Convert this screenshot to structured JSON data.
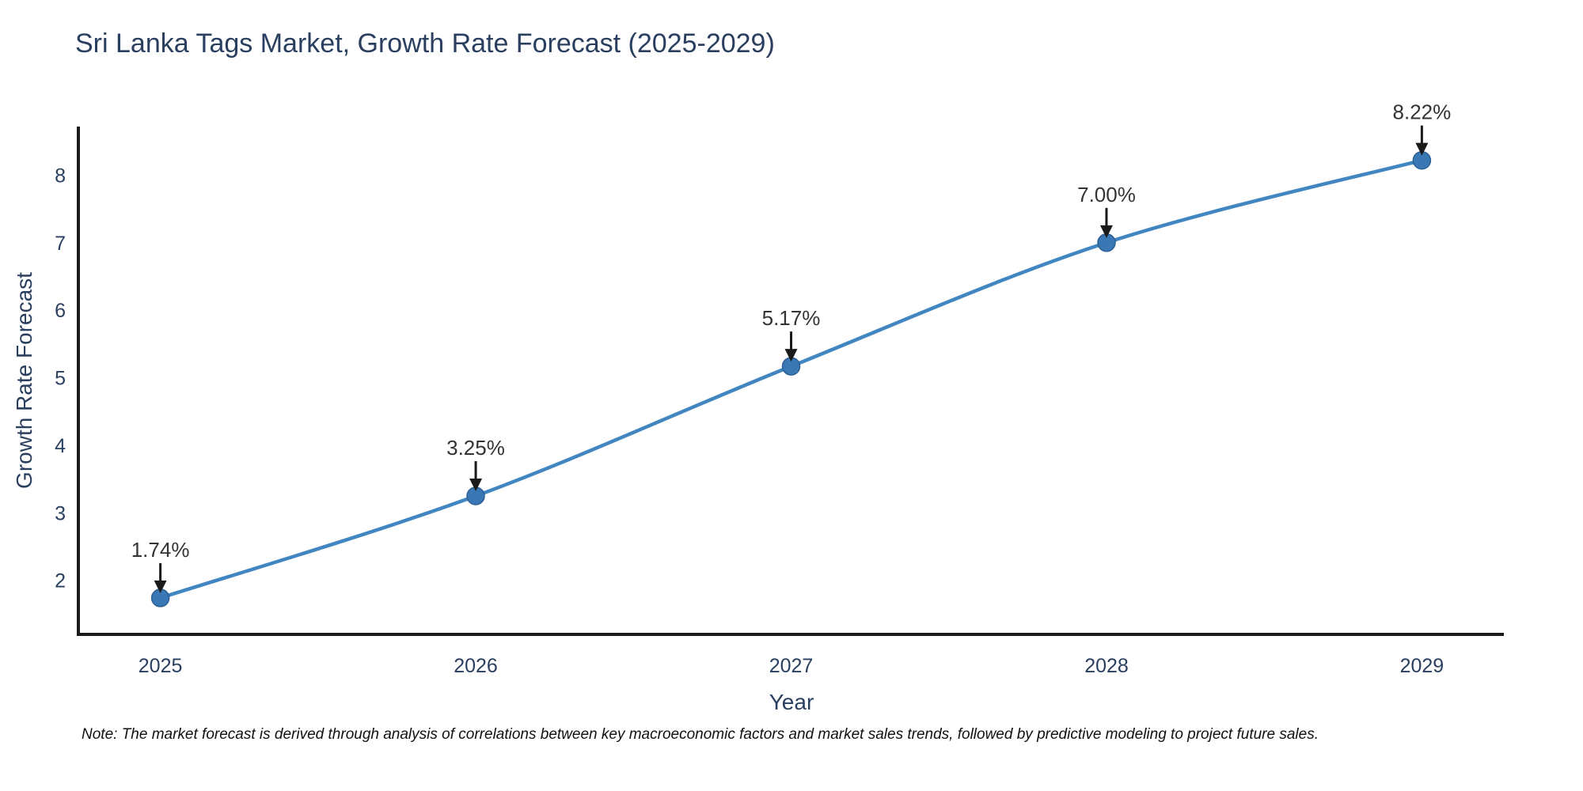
{
  "chart_data": {
    "type": "line",
    "title": "Sri Lanka Tags Market, Growth Rate Forecast (2025-2029)",
    "xlabel": "Year",
    "ylabel": "Growth Rate Forecast",
    "x": [
      2025,
      2026,
      2027,
      2028,
      2029
    ],
    "values": [
      1.74,
      3.25,
      5.17,
      7.0,
      8.22
    ],
    "point_labels": [
      "1.74%",
      "3.25%",
      "5.17%",
      "7.00%",
      "8.22%"
    ],
    "xticks": [
      "2025",
      "2026",
      "2027",
      "2028",
      "2029"
    ],
    "yticks": [
      2,
      3,
      4,
      5,
      6,
      7,
      8
    ],
    "xlim": [
      2024.74,
      2029.26
    ],
    "ylim": [
      1.2,
      8.72
    ],
    "grid": false,
    "legend": "none",
    "note": "Note: The market forecast is derived through analysis of correlations between key macroeconomic factors and market sales trends, followed by predictive modeling to project future sales.",
    "colors": {
      "line": "#4186c0",
      "marker_fill": "#3a78b5",
      "marker_edge": "#2d5f94",
      "axis_line": "#1a1a1a",
      "axis_text": "#2a3f5f",
      "annotation_text": "#333333",
      "arrow": "#1a1a1a",
      "background": "#ffffff"
    }
  }
}
